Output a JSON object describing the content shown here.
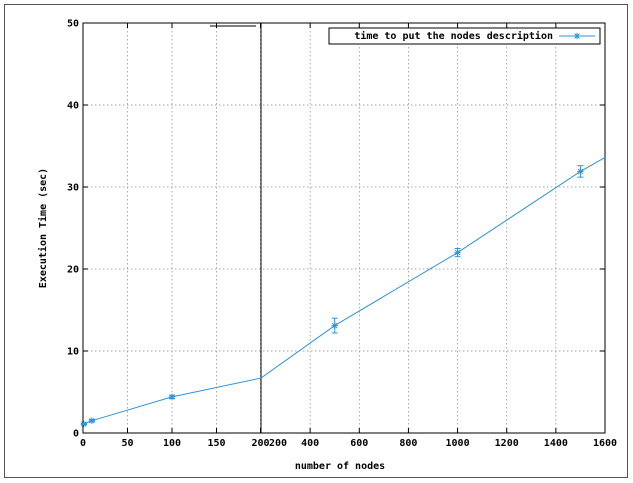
{
  "chart_data": {
    "type": "line",
    "xlabel": "number of nodes",
    "ylabel": "Execution Time (sec)",
    "ylim": [
      0,
      50
    ],
    "yticks": [
      0,
      10,
      20,
      30,
      40,
      50
    ],
    "grid": true,
    "legend_position": "top-right",
    "x_axis_broken": true,
    "left_segment": {
      "xlim": [
        0,
        200
      ],
      "xticks": [
        0,
        50,
        100,
        150,
        200
      ]
    },
    "right_segment": {
      "xlim": [
        200,
        1600
      ],
      "xticks": [
        200,
        400,
        600,
        800,
        1000,
        1200,
        1400,
        1600
      ]
    },
    "series": [
      {
        "name": "time to put the nodes description",
        "color": "#2f94d9",
        "marker": "asterisk",
        "points": [
          {
            "x": 1,
            "y": 1.1,
            "err": 0.1
          },
          {
            "x": 10,
            "y": 1.5,
            "err": 0.15
          },
          {
            "x": 100,
            "y": 4.4,
            "err": 0.2
          },
          {
            "x": 200,
            "y": 6.7
          },
          {
            "x": 500,
            "y": 13.1,
            "err": 0.9
          },
          {
            "x": 1000,
            "y": 22.0,
            "err": 0.5
          },
          {
            "x": 1500,
            "y": 31.9,
            "err": 0.7
          },
          {
            "x": 1600,
            "y": 33.6
          }
        ]
      }
    ]
  }
}
